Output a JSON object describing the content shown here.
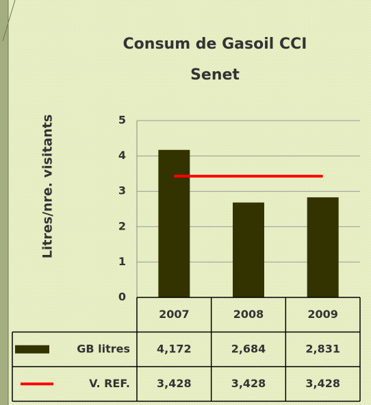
{
  "chart_data": {
    "type": "bar",
    "title": "Consum de Gasoil CCI",
    "subtitle": "Senet",
    "y_label": "Litres/nre. visitants",
    "categories": [
      "2007",
      "2008",
      "2009"
    ],
    "series": [
      {
        "name": "GB litres",
        "color": "#333300",
        "values": [
          4.172,
          2.684,
          2.831
        ],
        "value_labels": [
          "4,172",
          "2,684",
          "2,831"
        ]
      },
      {
        "name": "V. REF.",
        "color": "#ff0000",
        "type": "line",
        "values": [
          3.428,
          3.428,
          3.428
        ],
        "value_labels": [
          "3,428",
          "3,428",
          "3,428"
        ]
      }
    ],
    "ylim": [
      0,
      5
    ],
    "yticks": [
      0,
      1,
      2,
      3,
      4,
      5
    ],
    "grid": true,
    "data_table": true
  }
}
